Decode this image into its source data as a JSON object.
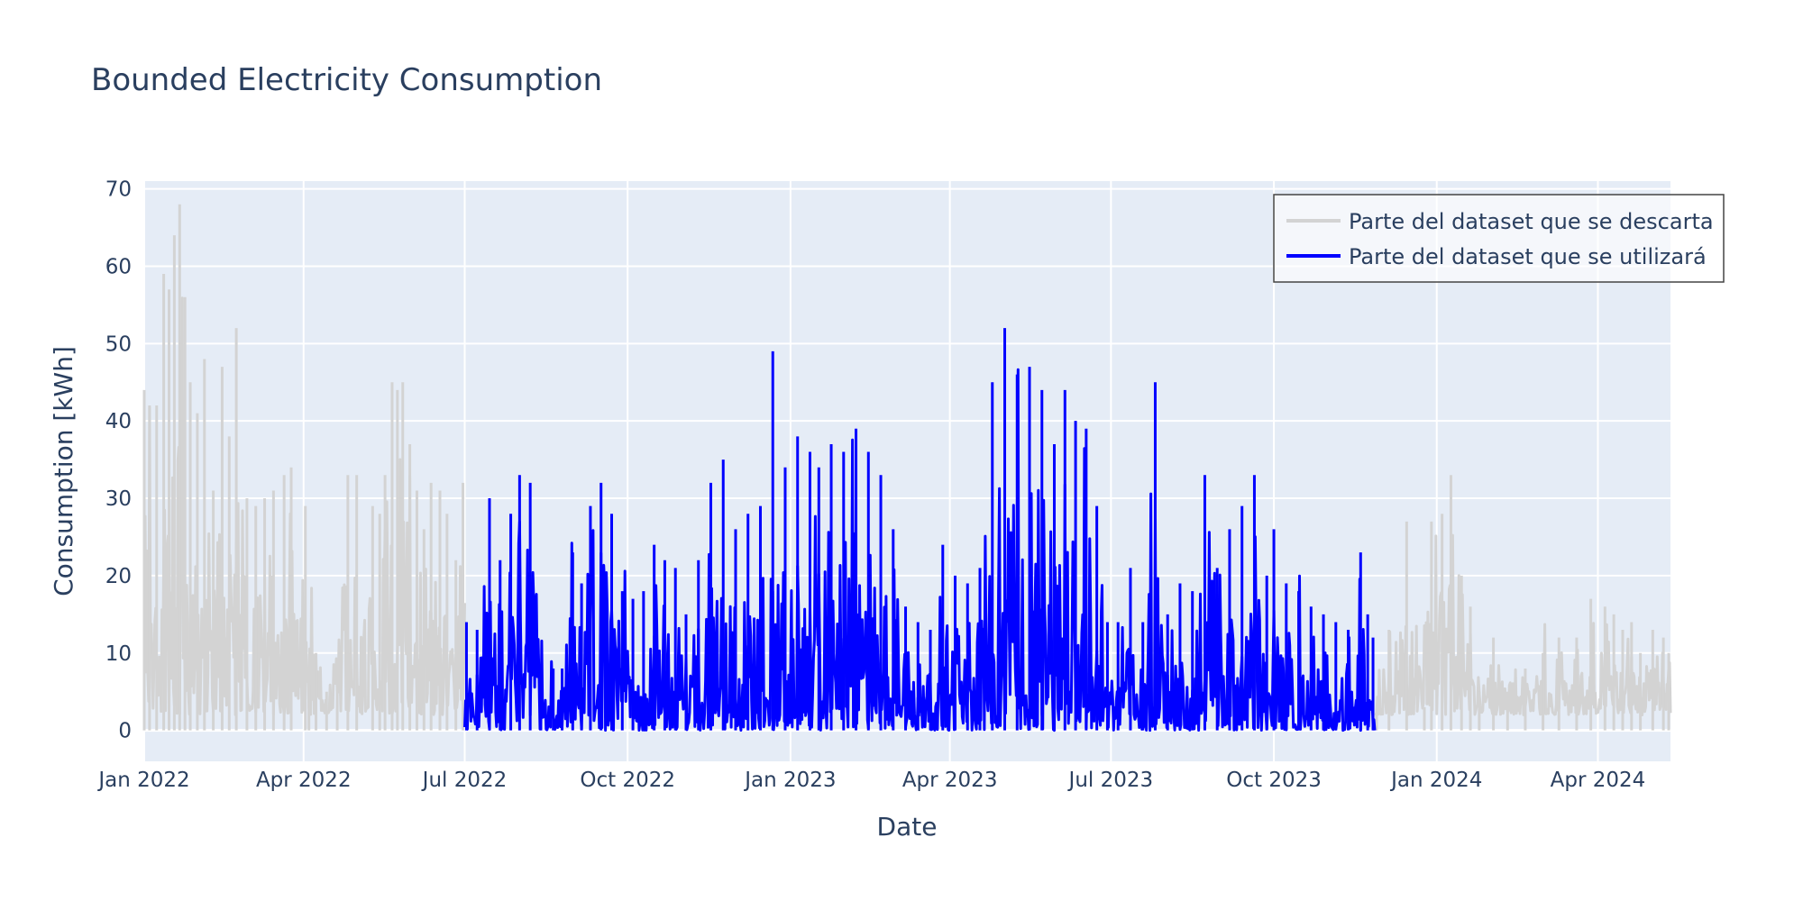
{
  "chart_data": {
    "type": "line",
    "title": "Bounded Electricity Consumption",
    "xlabel": "Date",
    "ylabel": "Consumption [kWh]",
    "xlim": [
      "2022-01-01",
      "2024-05-12"
    ],
    "ylim": [
      -4,
      71
    ],
    "x_ticks": [
      {
        "date": "2022-01-01",
        "label": "Jan 2022"
      },
      {
        "date": "2022-04-01",
        "label": "Apr 2022"
      },
      {
        "date": "2022-07-01",
        "label": "Jul 2022"
      },
      {
        "date": "2022-10-01",
        "label": "Oct 2022"
      },
      {
        "date": "2023-01-01",
        "label": "Jan 2023"
      },
      {
        "date": "2023-04-01",
        "label": "Apr 2023"
      },
      {
        "date": "2023-07-01",
        "label": "Jul 2023"
      },
      {
        "date": "2023-10-01",
        "label": "Oct 2023"
      },
      {
        "date": "2024-01-01",
        "label": "Jan 2024"
      },
      {
        "date": "2024-04-01",
        "label": "Apr 2024"
      }
    ],
    "y_ticks": [
      0,
      10,
      20,
      30,
      40,
      50,
      60,
      70
    ],
    "grid": true,
    "legend_position": "top-right",
    "series": [
      {
        "name": "Parte del dataset que se descarta",
        "color": "#d3d3d3",
        "segments": [
          {
            "start": "2022-01-01",
            "end": "2022-07-01"
          },
          {
            "start": "2023-11-27",
            "end": "2024-05-12"
          }
        ],
        "x": [
          "2022-01-01",
          "2022-01-04",
          "2022-01-08",
          "2022-01-12",
          "2022-01-15",
          "2022-01-18",
          "2022-01-21",
          "2022-01-24",
          "2022-01-27",
          "2022-01-31",
          "2022-02-04",
          "2022-02-09",
          "2022-02-14",
          "2022-02-18",
          "2022-02-22",
          "2022-02-28",
          "2022-03-05",
          "2022-03-10",
          "2022-03-15",
          "2022-03-21",
          "2022-03-25",
          "2022-04-02",
          "2022-04-04",
          "2022-04-08",
          "2022-04-14",
          "2022-04-20",
          "2022-04-26",
          "2022-05-01",
          "2022-05-10",
          "2022-05-14",
          "2022-05-17",
          "2022-05-21",
          "2022-05-24",
          "2022-05-27",
          "2022-05-31",
          "2022-06-04",
          "2022-06-08",
          "2022-06-12",
          "2022-06-17",
          "2022-06-21",
          "2022-06-26",
          "2022-06-30",
          "2023-11-28",
          "2023-12-05",
          "2023-12-15",
          "2023-12-25",
          "2023-12-29",
          "2024-01-04",
          "2024-01-09",
          "2024-01-15",
          "2024-01-20",
          "2024-01-25",
          "2024-02-02",
          "2024-02-10",
          "2024-02-20",
          "2024-03-01",
          "2024-03-10",
          "2024-03-20",
          "2024-03-28",
          "2024-04-05",
          "2024-04-10",
          "2024-04-15",
          "2024-04-20",
          "2024-04-25",
          "2024-05-02",
          "2024-05-08",
          "2024-05-11"
        ],
        "values": [
          44,
          42,
          42,
          59,
          57,
          64,
          68,
          56,
          45,
          41,
          48,
          31,
          47,
          38,
          52,
          30,
          29,
          30,
          31,
          33,
          34,
          29,
          6,
          10,
          5,
          6,
          33,
          33,
          29,
          28,
          33,
          45,
          44,
          45,
          37,
          31,
          26,
          32,
          31,
          28,
          22,
          32,
          2,
          13,
          27,
          3,
          27,
          28,
          33,
          20,
          16,
          5,
          12,
          5,
          8,
          10,
          12,
          12,
          17,
          16,
          15,
          13,
          14,
          10,
          13,
          12,
          10
        ]
      },
      {
        "name": "Parte del dataset que se utilizará",
        "color": "#0000ff",
        "segments": [
          {
            "start": "2022-07-01",
            "end": "2023-11-27"
          }
        ],
        "x": [
          "2022-07-02",
          "2022-07-08",
          "2022-07-15",
          "2022-07-21",
          "2022-07-27",
          "2022-08-01",
          "2022-08-07",
          "2022-08-13",
          "2022-08-20",
          "2022-08-25",
          "2022-08-31",
          "2022-09-05",
          "2022-09-10",
          "2022-09-16",
          "2022-09-22",
          "2022-09-28",
          "2022-10-04",
          "2022-10-10",
          "2022-10-16",
          "2022-10-22",
          "2022-10-28",
          "2022-11-03",
          "2022-11-10",
          "2022-11-17",
          "2022-11-24",
          "2022-12-01",
          "2022-12-08",
          "2022-12-15",
          "2022-12-22",
          "2022-12-29",
          "2023-01-05",
          "2023-01-12",
          "2023-01-17",
          "2023-01-24",
          "2023-01-31",
          "2023-02-07",
          "2023-02-14",
          "2023-02-21",
          "2023-02-28",
          "2023-03-07",
          "2023-03-14",
          "2023-03-21",
          "2023-03-28",
          "2023-04-04",
          "2023-04-11",
          "2023-04-18",
          "2023-04-25",
          "2023-05-02",
          "2023-05-09",
          "2023-05-16",
          "2023-05-23",
          "2023-05-30",
          "2023-06-05",
          "2023-06-11",
          "2023-06-17",
          "2023-06-23",
          "2023-06-29",
          "2023-07-05",
          "2023-07-12",
          "2023-07-19",
          "2023-07-26",
          "2023-08-02",
          "2023-08-09",
          "2023-08-16",
          "2023-08-23",
          "2023-08-30",
          "2023-09-06",
          "2023-09-13",
          "2023-09-20",
          "2023-09-27",
          "2023-10-01",
          "2023-10-08",
          "2023-10-15",
          "2023-10-22",
          "2023-10-29",
          "2023-11-05",
          "2023-11-12",
          "2023-11-19",
          "2023-11-23",
          "2023-11-26"
        ],
        "values": [
          14,
          13,
          30,
          22,
          28,
          33,
          32,
          7,
          8,
          8,
          23,
          19,
          29,
          32,
          28,
          18,
          17,
          18,
          24,
          22,
          21,
          15,
          22,
          32,
          35,
          26,
          28,
          29,
          49,
          34,
          38,
          36,
          34,
          37,
          36,
          39,
          36,
          33,
          26,
          16,
          14,
          13,
          24,
          20,
          19,
          21,
          45,
          52,
          46,
          47,
          44,
          37,
          44,
          40,
          39,
          29,
          14,
          14,
          21,
          14,
          45,
          15,
          19,
          18,
          33,
          21,
          26,
          29,
          33,
          20,
          26,
          19,
          18,
          16,
          15,
          14,
          13,
          23,
          15,
          12
        ]
      }
    ]
  }
}
